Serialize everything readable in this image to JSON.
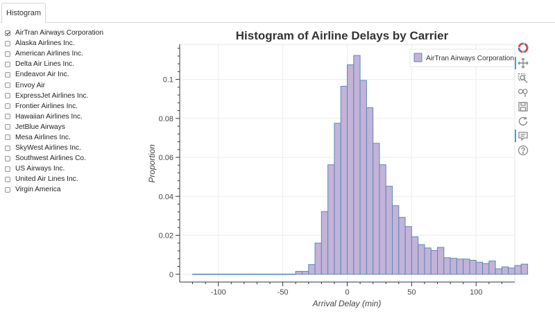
{
  "tabs": [
    {
      "label": "Histogram",
      "active": true
    }
  ],
  "carriers": [
    {
      "name": "AirTran Airways Corporation",
      "checked": true
    },
    {
      "name": "Alaska Airlines Inc.",
      "checked": false
    },
    {
      "name": "American Airlines Inc.",
      "checked": false
    },
    {
      "name": "Delta Air Lines Inc.",
      "checked": false
    },
    {
      "name": "Endeavor Air Inc.",
      "checked": false
    },
    {
      "name": "Envoy Air",
      "checked": false
    },
    {
      "name": "ExpressJet Airlines Inc.",
      "checked": false
    },
    {
      "name": "Frontier Airlines Inc.",
      "checked": false
    },
    {
      "name": "Hawaiian Airlines Inc.",
      "checked": false
    },
    {
      "name": "JetBlue Airways",
      "checked": false
    },
    {
      "name": "Mesa Airlines Inc.",
      "checked": false
    },
    {
      "name": "SkyWest Airlines Inc.",
      "checked": false
    },
    {
      "name": "Southwest Airlines Co.",
      "checked": false
    },
    {
      "name": "US Airways Inc.",
      "checked": false
    },
    {
      "name": "United Air Lines Inc.",
      "checked": false
    },
    {
      "name": "Virgin America",
      "checked": false
    }
  ],
  "toolbar": [
    {
      "name": "bokeh-logo-icon",
      "label": "Bokeh",
      "active": false
    },
    {
      "name": "pan-icon",
      "label": "Pan",
      "active": true
    },
    {
      "name": "box-zoom-icon",
      "label": "Box Zoom",
      "active": false
    },
    {
      "name": "wheel-zoom-icon",
      "label": "Wheel Zoom",
      "active": false
    },
    {
      "name": "save-icon",
      "label": "Save",
      "active": false
    },
    {
      "name": "reset-icon",
      "label": "Reset",
      "active": false
    },
    {
      "name": "hover-icon",
      "label": "Hover",
      "active": true
    },
    {
      "name": "help-icon",
      "label": "Help",
      "active": false
    }
  ],
  "chart_data": {
    "type": "bar",
    "title": "Histogram of Airline Delays by Carrier",
    "xlabel": "Arrival Delay (min)",
    "ylabel": "Proportion",
    "xlim": [
      -130,
      130
    ],
    "ylim": [
      -0.004,
      0.118
    ],
    "xticks": [
      -100,
      -50,
      0,
      50,
      100
    ],
    "xtick_labels": [
      "-100",
      "-50",
      "0",
      "50",
      "100"
    ],
    "yticks": [
      0,
      0.02,
      0.04,
      0.06,
      0.08,
      0.1
    ],
    "ytick_labels": [
      "0",
      "0.02",
      "0.04",
      "0.06",
      "0.08",
      "0.1"
    ],
    "legend": {
      "entries": [
        "AirTran Airways Corporation"
      ],
      "placement": "top-right"
    },
    "bar_color": "#c3b3d8",
    "edge_color": "#5b87b8",
    "bin_width": 5,
    "bin_start": -120,
    "values": [
      0.0001,
      0.0001,
      0.0001,
      0.0001,
      0.0001,
      0.0001,
      0.0001,
      0.0001,
      0.0001,
      0.0001,
      0.0001,
      0.0001,
      0.0001,
      0.0001,
      0.0001,
      0.0001,
      0.0015,
      0.0015,
      0.005,
      0.016,
      0.0322,
      0.0562,
      0.0775,
      0.0965,
      0.1075,
      0.1123,
      0.0995,
      0.0855,
      0.0672,
      0.0562,
      0.0452,
      0.0352,
      0.0292,
      0.0245,
      0.0192,
      0.0152,
      0.0135,
      0.0122,
      0.0138,
      0.0085,
      0.0082,
      0.0078,
      0.0078,
      0.0072,
      0.0062,
      0.0055,
      0.0068,
      0.0028,
      0.0038,
      0.0032,
      0.0045,
      0.0052
    ]
  }
}
